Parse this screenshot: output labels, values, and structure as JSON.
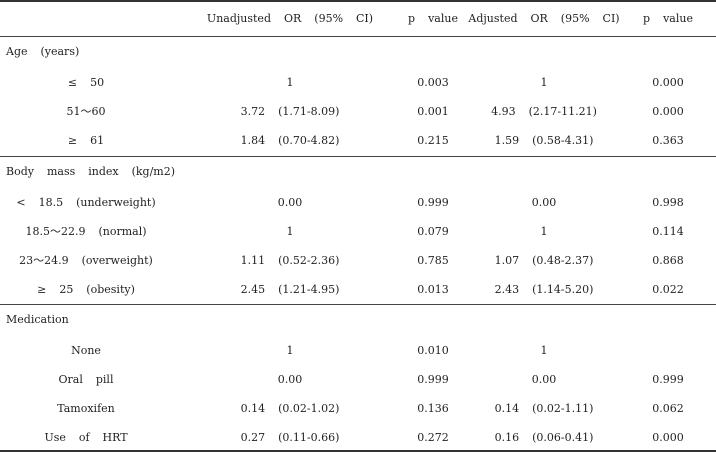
{
  "header": {
    "col1": "Unadjusted  OR  (95%  CI)",
    "col2": "p  value",
    "col3": "Adjusted  OR  (95%  CI)",
    "col4": "p  value"
  },
  "sections": [
    {
      "title": "Age  (years)",
      "rows": [
        {
          "label": "≤  50",
          "unadj_or": "1",
          "p1": "0.003",
          "adj_or": "1",
          "p2": "0.000"
        },
        {
          "label": "51～60",
          "unadj_or": "3.72  (1.71-8.09)",
          "p1": "0.001",
          "adj_or": "4.93  (2.17-11.21)",
          "p2": "0.000"
        },
        {
          "label": "≥  61",
          "unadj_or": "1.84  (0.70-4.82)",
          "p1": "0.215",
          "adj_or": "1.59  (0.58-4.31)",
          "p2": "0.363"
        }
      ]
    },
    {
      "title": "Body  mass  index  (kg/m2)",
      "rows": [
        {
          "label": "<  18.5  (underweight)",
          "unadj_or": "0.00",
          "p1": "0.999",
          "adj_or": "0.00",
          "p2": "0.998"
        },
        {
          "label": "18.5～22.9  (normal)",
          "unadj_or": "1",
          "p1": "0.079",
          "adj_or": "1",
          "p2": "0.114"
        },
        {
          "label": "23～24.9  (overweight)",
          "unadj_or": "1.11  (0.52-2.36)",
          "p1": "0.785",
          "adj_or": "1.07  (0.48-2.37)",
          "p2": "0.868"
        },
        {
          "label": "≥  25  (obesity)",
          "unadj_or": "2.45  (1.21-4.95)",
          "p1": "0.013",
          "adj_or": "2.43  (1.14-5.20)",
          "p2": "0.022"
        }
      ]
    },
    {
      "title": "Medication",
      "rows": [
        {
          "label": "None",
          "unadj_or": "1",
          "p1": "0.010",
          "adj_or": "1",
          "p2": ""
        },
        {
          "label": "Oral  pill",
          "unadj_or": "0.00",
          "p1": "0.999",
          "adj_or": "0.00",
          "p2": "0.999"
        },
        {
          "label": "Tamoxifen",
          "unadj_or": "0.14  (0.02-1.02)",
          "p1": "0.136",
          "adj_or": "0.14  (0.02-1.11)",
          "p2": "0.062"
        },
        {
          "label": "Use  of  HRT",
          "unadj_or": "0.27  (0.11-0.66)",
          "p1": "0.272",
          "adj_or": "0.16  (0.06-0.41)",
          "p2": "0.000"
        }
      ]
    }
  ]
}
